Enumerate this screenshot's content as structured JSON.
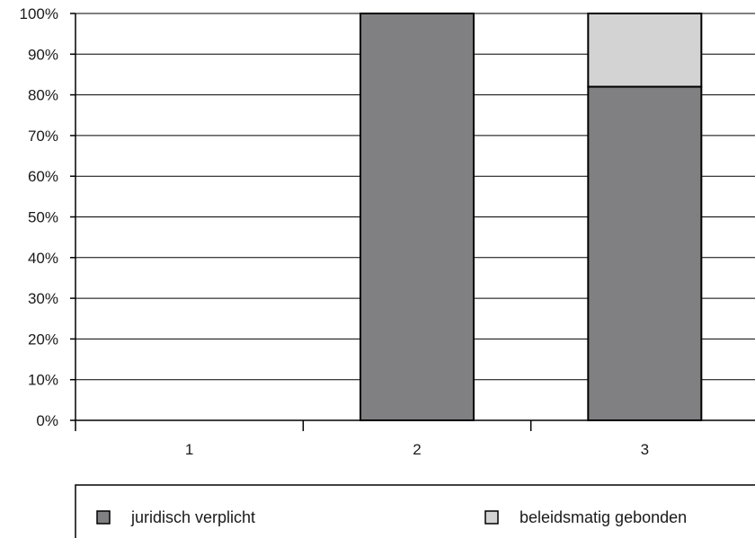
{
  "chart_data": {
    "type": "bar",
    "stacked": true,
    "categories": [
      "1",
      "2",
      "3"
    ],
    "series": [
      {
        "name": "juridisch verplicht",
        "values": [
          0,
          100,
          82
        ],
        "color": "#808083"
      },
      {
        "name": "beleidsmatig gebonden",
        "values": [
          0,
          0,
          18
        ],
        "color": "#d3d3d3"
      }
    ],
    "title": "",
    "xlabel": "",
    "ylabel": "",
    "ylim": [
      0,
      100
    ],
    "y_ticks": [
      "0%",
      "10%",
      "20%",
      "30%",
      "40%",
      "50%",
      "60%",
      "70%",
      "80%",
      "90%",
      "100%"
    ],
    "grid": true,
    "legend_position": "bottom"
  },
  "legend": {
    "items": [
      {
        "label": "juridisch verplicht",
        "color": "#808083"
      },
      {
        "label": "beleidsmatig gebonden",
        "color": "#d3d3d3"
      }
    ]
  }
}
